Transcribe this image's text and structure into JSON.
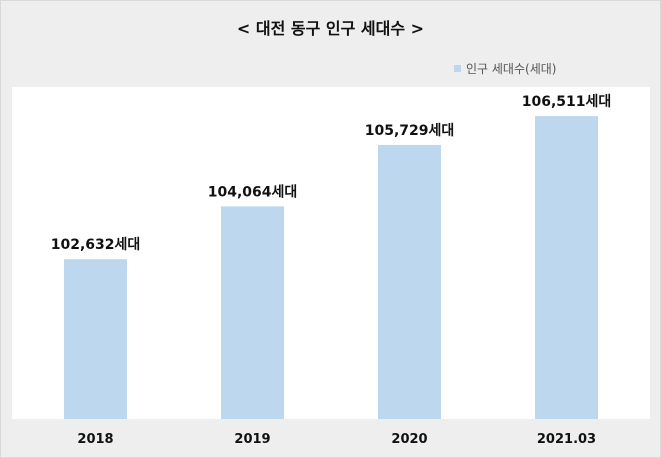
{
  "chart_data": {
    "type": "bar",
    "title": "< 대전 동구 인구 세대수 >",
    "categories": [
      "2018",
      "2019",
      "2020",
      "2021.03"
    ],
    "series": [
      {
        "name": "인구 세대수(세대)",
        "values": [
          102632,
          104064,
          105729,
          106511
        ],
        "labels": [
          "102,632세대",
          "104,064세대",
          "105,729세대",
          "106,511세대"
        ]
      }
    ],
    "bar_color": "#bdd7ee",
    "xlabel": "",
    "ylabel": "",
    "ylim": [
      98300,
      107300
    ],
    "grid": false,
    "legend_position": "top-right"
  }
}
